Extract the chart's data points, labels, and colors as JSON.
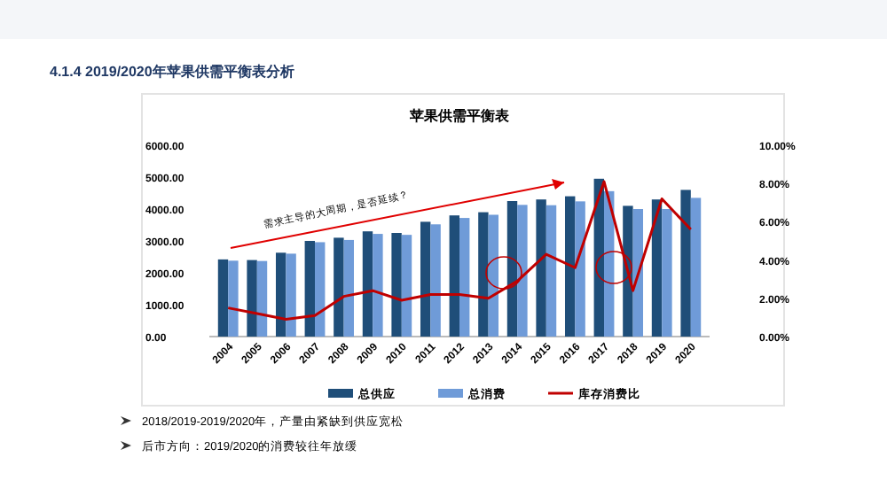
{
  "chart_data": {
    "type": "bar",
    "title": "苹果供需平衡表",
    "subtitle": "4.1.4 2019/2020年苹果供需平衡表分析",
    "categories": [
      "2004",
      "2005",
      "2006",
      "2007",
      "2008",
      "2009",
      "2010",
      "2011",
      "2012",
      "2013",
      "2014",
      "2015",
      "2016",
      "2017",
      "2018",
      "2019",
      "2020"
    ],
    "series": [
      {
        "name": "总供应",
        "color": "#1f4e79",
        "values": [
          2420,
          2400,
          2630,
          3000,
          3100,
          3300,
          3250,
          3600,
          3800,
          3900,
          4250,
          4300,
          4400,
          4950,
          4100,
          4300,
          4600
        ]
      },
      {
        "name": "总消费",
        "color": "#6f9bd8",
        "values": [
          2380,
          2370,
          2600,
          2960,
          3030,
          3220,
          3190,
          3520,
          3720,
          3820,
          4130,
          4120,
          4240,
          4560,
          4000,
          4000,
          4350
        ]
      },
      {
        "name": "库存消费比",
        "type": "line",
        "axis": "y2",
        "color": "#c00000",
        "values": [
          1.5,
          1.2,
          0.9,
          1.1,
          2.1,
          2.4,
          1.9,
          2.2,
          2.2,
          2.0,
          2.9,
          4.3,
          3.6,
          8.1,
          2.4,
          7.2,
          5.6
        ]
      }
    ],
    "ylim": [
      0,
      6000
    ],
    "yticks": [
      {
        "value": 0,
        "label": "0.00"
      },
      {
        "value": 1000,
        "label": "1000.00"
      },
      {
        "value": 2000,
        "label": "2000.00"
      },
      {
        "value": 3000,
        "label": "3000.00"
      },
      {
        "value": 4000,
        "label": "4000.00"
      },
      {
        "value": 5000,
        "label": "5000.00"
      },
      {
        "value": 6000,
        "label": "6000.00"
      }
    ],
    "y2lim": [
      0,
      10
    ],
    "y2ticks": [
      {
        "value": 0,
        "label": "0.00%"
      },
      {
        "value": 2,
        "label": "2.00%"
      },
      {
        "value": 4,
        "label": "4.00%"
      },
      {
        "value": 6,
        "label": "6.00%"
      },
      {
        "value": 8,
        "label": "8.00%"
      },
      {
        "value": 10,
        "label": "10.00%"
      }
    ],
    "legend": "bottom",
    "grid": false,
    "annotations": [
      "需求主导的大周期，是否延续？",
      "2018/2019-2019/2020年，产量由紧缺到供应宽松",
      "后市方向：2019/2020的消费较往年放缓"
    ]
  }
}
